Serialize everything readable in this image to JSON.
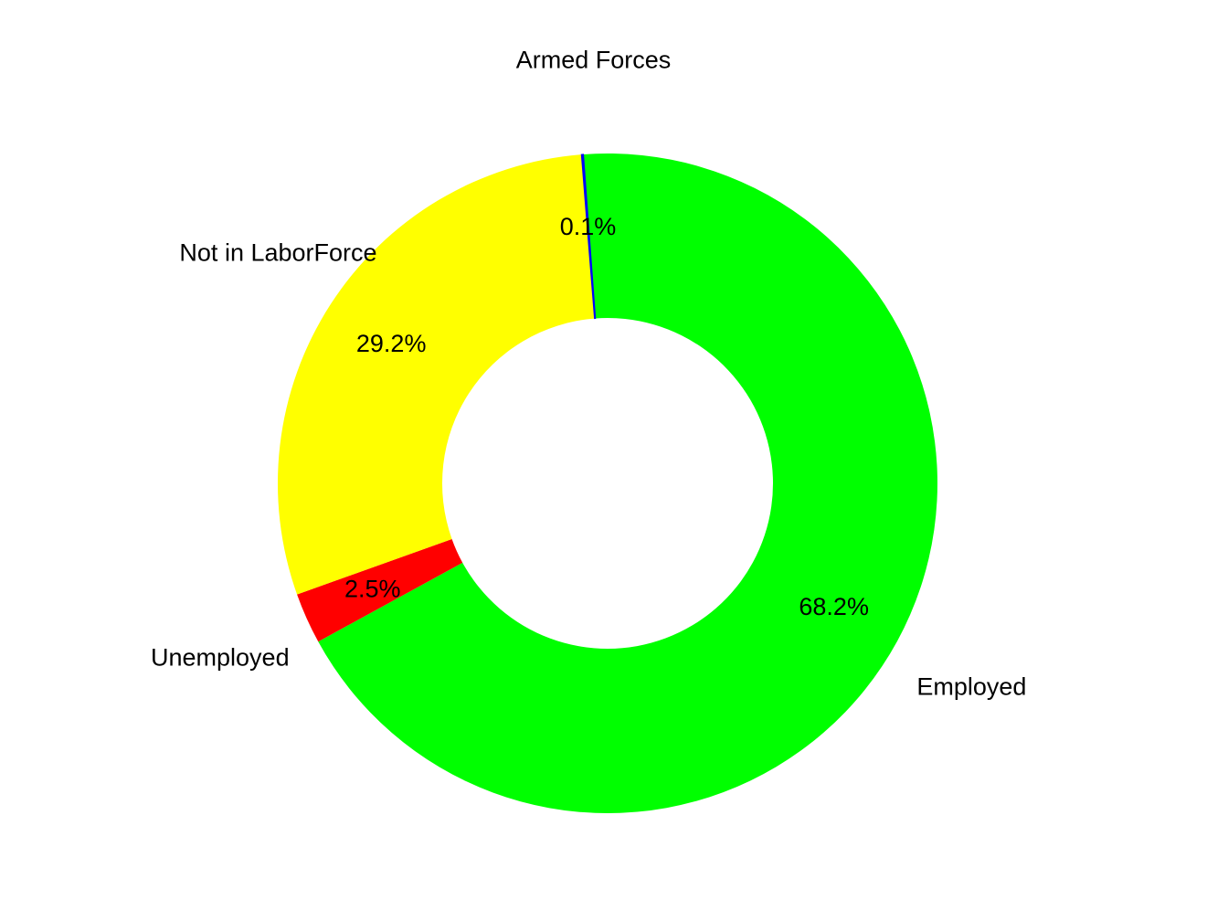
{
  "chart_data": {
    "type": "pie",
    "style": "donut",
    "start_angle_deg_clockwise_from_top": -4.2,
    "direction": "clockwise",
    "legend": "none",
    "slices": [
      {
        "name": "Employed",
        "value": 68.2,
        "label": "68.2%",
        "color": "#00ff00"
      },
      {
        "name": "Unemployed",
        "value": 2.5,
        "label": "2.5%",
        "color": "#ff0000"
      },
      {
        "name": "Not in LaborForce",
        "value": 29.2,
        "label": "29.2%",
        "color": "#ffff00"
      },
      {
        "name": "Armed Forces",
        "value": 0.1,
        "label": "0.1%",
        "color": "#0000ff"
      }
    ]
  }
}
